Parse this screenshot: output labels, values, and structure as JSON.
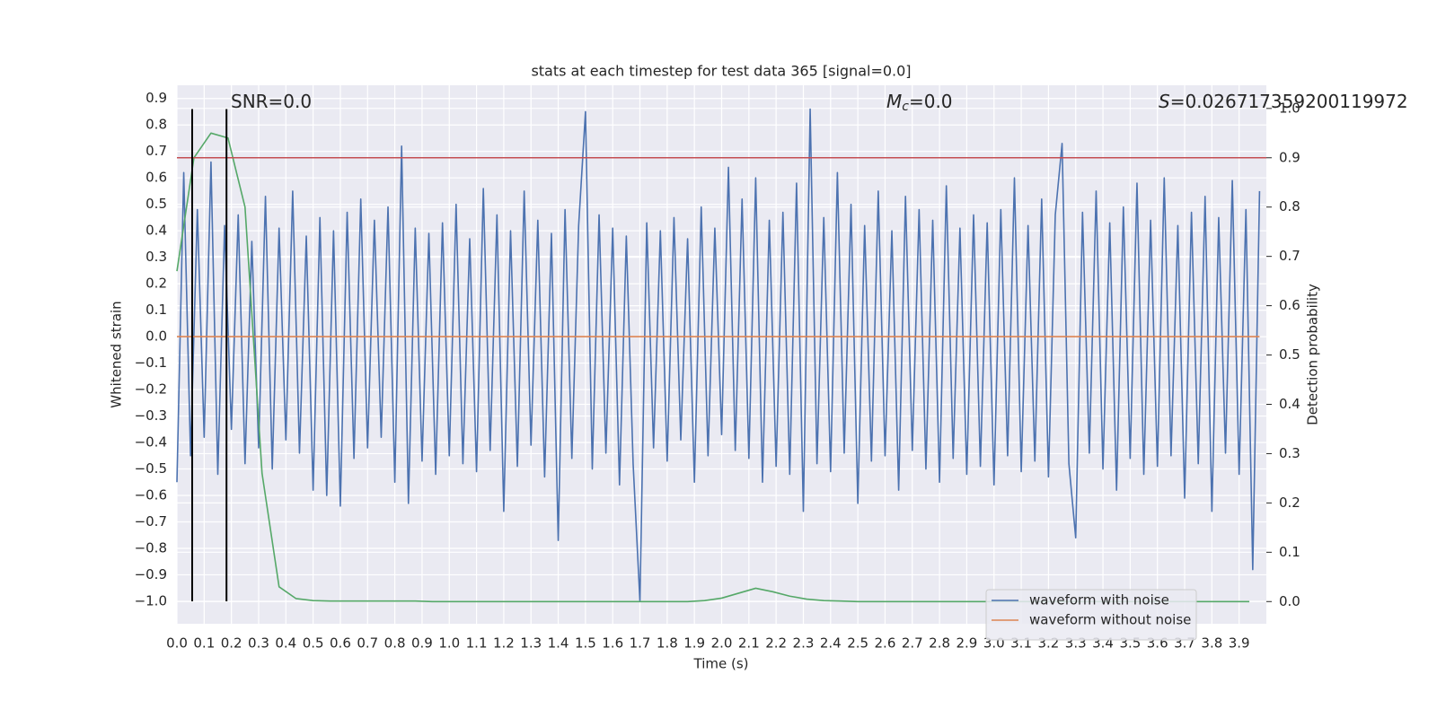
{
  "chart_data": {
    "type": "line",
    "title": "stats at each timestep for test data 365 [signal=0.0]",
    "xlabel": "Time (s)",
    "ylabel": "Whitened strain",
    "y2label": "Detection probability",
    "xlim": [
      0,
      4.0
    ],
    "ylim": [
      -1.085,
      0.95
    ],
    "y2lim": [
      -0.045,
      1.047
    ],
    "xticks": [
      {
        "value": 0,
        "label": "0.0"
      },
      0.1,
      0.2,
      0.3,
      0.4,
      0.5,
      0.6,
      0.7,
      0.8,
      0.9,
      {
        "value": 1,
        "label": "1.0"
      },
      1.1,
      1.2,
      1.3,
      1.4,
      1.5,
      1.6,
      1.7,
      1.8,
      1.9,
      {
        "value": 2,
        "label": "2.0"
      },
      2.1,
      2.2,
      2.3,
      2.4,
      2.5,
      2.6,
      2.7,
      2.8,
      2.9,
      {
        "value": 3,
        "label": "3.0"
      },
      3.1,
      3.2,
      3.3,
      3.4,
      3.5,
      3.6,
      3.7,
      3.8,
      3.9
    ],
    "yticks": [
      {
        "value": -1.0,
        "label": "−1.0"
      },
      {
        "value": -0.9,
        "label": "−0.9"
      },
      {
        "value": -0.8,
        "label": "−0.8"
      },
      {
        "value": -0.7,
        "label": "−0.7"
      },
      {
        "value": -0.6,
        "label": "−0.6"
      },
      {
        "value": -0.5,
        "label": "−0.5"
      },
      {
        "value": -0.4,
        "label": "−0.4"
      },
      {
        "value": -0.3,
        "label": "−0.3"
      },
      {
        "value": -0.2,
        "label": "−0.2"
      },
      {
        "value": -0.1,
        "label": "−0.1"
      },
      {
        "value": 0,
        "label": "0.0"
      },
      0.1,
      0.2,
      0.3,
      0.4,
      0.5,
      0.6,
      0.7,
      0.8,
      0.9
    ],
    "y2ticks": [
      {
        "value": 0,
        "label": "0.0"
      },
      0.1,
      0.2,
      0.3,
      0.4,
      0.5,
      0.6,
      0.7,
      0.8,
      0.9,
      {
        "value": 1,
        "label": "1.0"
      }
    ],
    "grid": true,
    "legend": "lower right",
    "series": [
      {
        "name": "waveform with noise",
        "color": "#4c72b0",
        "x": [
          0,
          0.025,
          0.05,
          0.075,
          0.1,
          0.125,
          0.15,
          0.175,
          0.2,
          0.225,
          0.25,
          0.275,
          0.3,
          0.325,
          0.35,
          0.375,
          0.4,
          0.425,
          0.45,
          0.475,
          0.5,
          0.525,
          0.55,
          0.575,
          0.6,
          0.625,
          0.65,
          0.675,
          0.7,
          0.725,
          0.75,
          0.775,
          0.8,
          0.825,
          0.85,
          0.875,
          0.9,
          0.925,
          0.95,
          0.975,
          1.0,
          1.025,
          1.05,
          1.075,
          1.1,
          1.125,
          1.15,
          1.175,
          1.2,
          1.225,
          1.25,
          1.275,
          1.3,
          1.325,
          1.35,
          1.375,
          1.4,
          1.425,
          1.45,
          1.475,
          1.5,
          1.525,
          1.55,
          1.575,
          1.6,
          1.625,
          1.65,
          1.675,
          1.7,
          1.725,
          1.75,
          1.775,
          1.8,
          1.825,
          1.85,
          1.875,
          1.9,
          1.925,
          1.95,
          1.975,
          2.0,
          2.025,
          2.05,
          2.075,
          2.1,
          2.125,
          2.15,
          2.175,
          2.2,
          2.225,
          2.25,
          2.275,
          2.3,
          2.325,
          2.35,
          2.375,
          2.4,
          2.425,
          2.45,
          2.475,
          2.5,
          2.525,
          2.55,
          2.575,
          2.6,
          2.625,
          2.65,
          2.675,
          2.7,
          2.725,
          2.75,
          2.775,
          2.8,
          2.825,
          2.85,
          2.875,
          2.9,
          2.925,
          2.95,
          2.975,
          3.0,
          3.025,
          3.05,
          3.075,
          3.1,
          3.125,
          3.15,
          3.175,
          3.2,
          3.225,
          3.25,
          3.275,
          3.3,
          3.325,
          3.35,
          3.375,
          3.4,
          3.425,
          3.45,
          3.475,
          3.5,
          3.525,
          3.55,
          3.575,
          3.6,
          3.625,
          3.65,
          3.675,
          3.7,
          3.725,
          3.75,
          3.775,
          3.8,
          3.825,
          3.85,
          3.875,
          3.9,
          3.925,
          3.95,
          3.975
        ],
        "values": [
          -0.55,
          0.62,
          -0.45,
          0.48,
          -0.38,
          0.66,
          -0.52,
          0.42,
          -0.35,
          0.46,
          -0.48,
          0.36,
          -0.42,
          0.53,
          -0.5,
          0.41,
          -0.39,
          0.55,
          -0.44,
          0.38,
          -0.58,
          0.45,
          -0.6,
          0.4,
          -0.64,
          0.47,
          -0.46,
          0.52,
          -0.42,
          0.44,
          -0.38,
          0.49,
          -0.55,
          0.72,
          -0.63,
          0.41,
          -0.47,
          0.39,
          -0.52,
          0.43,
          -0.45,
          0.5,
          -0.48,
          0.37,
          -0.51,
          0.56,
          -0.43,
          0.46,
          -0.66,
          0.4,
          -0.49,
          0.55,
          -0.41,
          0.44,
          -0.53,
          0.39,
          -0.77,
          0.48,
          -0.46,
          0.42,
          0.85,
          -0.5,
          0.46,
          -0.44,
          0.41,
          -0.56,
          0.38,
          -0.48,
          -1.0,
          0.43,
          -0.42,
          0.4,
          -0.47,
          0.45,
          -0.39,
          0.37,
          -0.55,
          0.49,
          -0.45,
          0.41,
          -0.37,
          0.64,
          -0.43,
          0.52,
          -0.46,
          0.6,
          -0.55,
          0.44,
          -0.49,
          0.47,
          -0.52,
          0.58,
          -0.66,
          0.86,
          -0.48,
          0.45,
          -0.51,
          0.62,
          -0.44,
          0.5,
          -0.63,
          0.42,
          -0.47,
          0.55,
          -0.45,
          0.4,
          -0.58,
          0.53,
          -0.43,
          0.48,
          -0.5,
          0.44,
          -0.55,
          0.57,
          -0.46,
          0.41,
          -0.52,
          0.46,
          -0.49,
          0.43,
          -0.56,
          0.48,
          -0.45,
          0.6,
          -0.51,
          0.42,
          -0.47,
          0.52,
          -0.53,
          0.46,
          0.73,
          -0.48,
          -0.76,
          0.47,
          -0.44,
          0.55,
          -0.5,
          0.43,
          -0.58,
          0.49,
          -0.46,
          0.58,
          -0.52,
          0.44,
          -0.49,
          0.6,
          -0.45,
          0.42,
          -0.61,
          0.47,
          -0.48,
          0.53,
          -0.66,
          0.45,
          -0.44,
          0.59,
          -0.52,
          0.48,
          -0.88,
          0.55
        ]
      },
      {
        "name": "waveform without noise",
        "color": "#dd8452",
        "x": [
          0,
          3.975
        ],
        "values": [
          0.0,
          0.0
        ]
      },
      {
        "color": "#55a868",
        "axis": "y2",
        "x": [
          0,
          0.0625,
          0.125,
          0.1875,
          0.25,
          0.3125,
          0.375,
          0.4375,
          0.5,
          0.5625,
          0.625,
          0.6875,
          0.75,
          0.8125,
          0.875,
          0.9375,
          1.0,
          1.0625,
          1.125,
          1.1875,
          1.25,
          1.3125,
          1.375,
          1.4375,
          1.5,
          1.5625,
          1.625,
          1.6875,
          1.75,
          1.8125,
          1.875,
          1.9375,
          2.0,
          2.0625,
          2.125,
          2.1875,
          2.25,
          2.3125,
          2.375,
          2.4375,
          2.5,
          2.5625,
          2.625,
          2.6875,
          2.75,
          2.8125,
          2.875,
          2.9375,
          3.0,
          3.0625,
          3.125,
          3.1875,
          3.25,
          3.3125,
          3.375,
          3.4375,
          3.5,
          3.5625,
          3.625,
          3.6875,
          3.75,
          3.8125,
          3.875,
          3.9375
        ],
        "values": [
          0.67,
          0.9,
          0.95,
          0.94,
          0.8,
          0.26,
          0.03,
          0.006,
          0.002,
          0.001,
          0.001,
          0.001,
          0.001,
          0.001,
          0.001,
          0,
          0,
          0,
          0,
          0,
          0,
          0,
          0,
          0,
          0,
          0,
          0,
          0,
          0,
          0,
          0,
          0.002,
          0.007,
          0.017,
          0.027,
          0.02,
          0.011,
          0.005,
          0.002,
          0.001,
          0,
          0,
          0,
          0,
          0,
          0,
          0,
          0,
          0,
          0,
          0,
          0,
          0,
          0,
          0,
          0,
          0,
          0,
          0,
          0,
          0,
          0,
          0,
          0
        ]
      }
    ],
    "hlines": [
      {
        "y": 0.9,
        "axis": "y2",
        "color": "#c44e52"
      }
    ],
    "vlines": [
      {
        "x": 0.056,
        "ymin": -1.0,
        "ymax": 0.86,
        "color": "#000000"
      },
      {
        "x": 0.182,
        "ymin": -1.0,
        "ymax": 0.86,
        "color": "#000000"
      }
    ],
    "annotations": [
      {
        "text": "SNR=0.0"
      },
      {
        "symbol": "M",
        "subscript": "c",
        "text": "=0.0"
      },
      {
        "symbol": "S",
        "text": "=0.026717359200119972"
      }
    ]
  }
}
